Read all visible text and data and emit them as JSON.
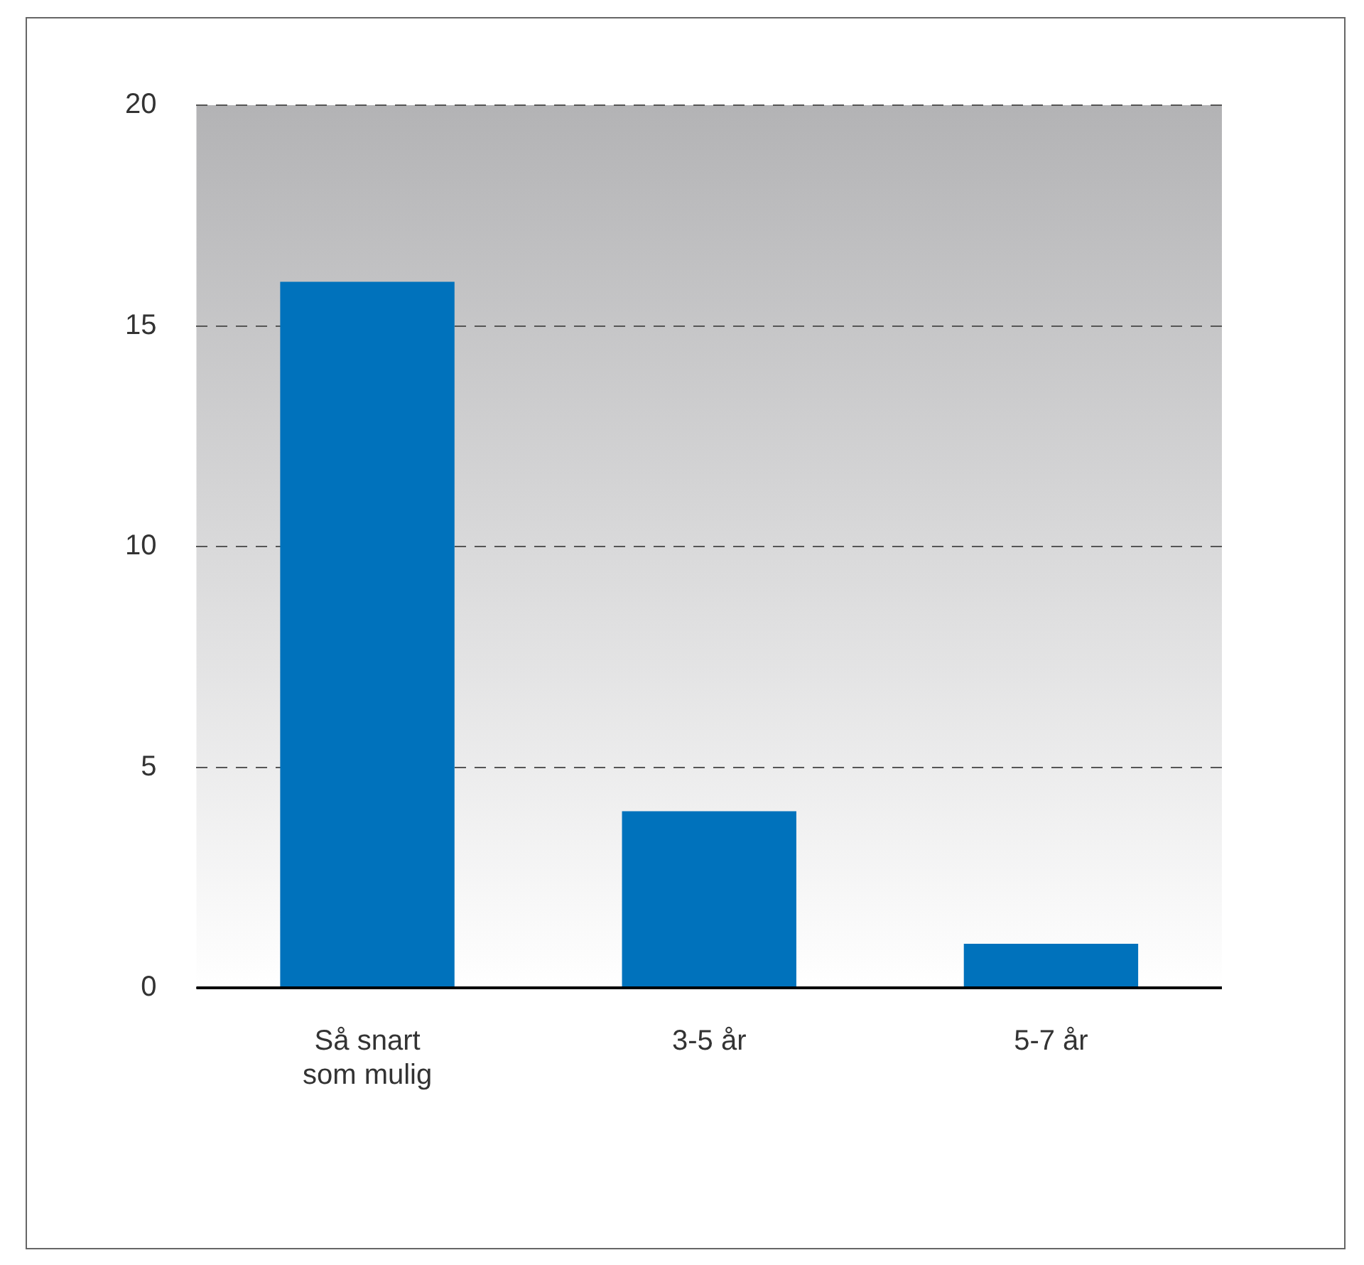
{
  "chart_data": {
    "type": "bar",
    "categories": [
      "Så snart som mulig",
      "3-5 år",
      "5-7 år"
    ],
    "values": [
      16,
      4,
      1
    ],
    "color": "#0072bc",
    "ylim": [
      0,
      20
    ],
    "yticks": [
      0,
      5,
      10,
      15,
      20
    ],
    "grid": "y",
    "line_style": "dashed",
    "legend": false
  }
}
